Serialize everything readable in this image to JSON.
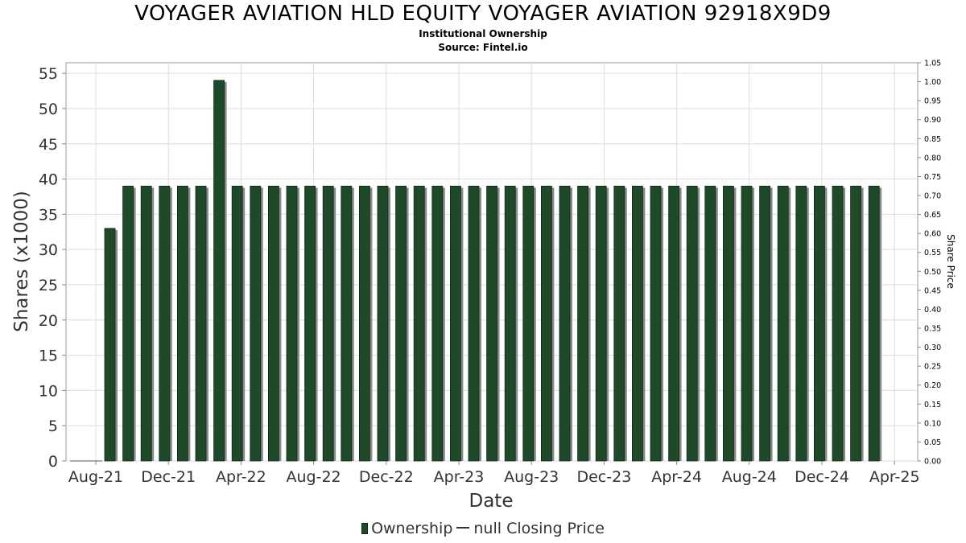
{
  "title": "VOYAGER AVIATION HLD EQUITY VOYAGER AVIATION 92918X9D9",
  "subtitle": "Institutional Ownership",
  "source": "Source: Fintel.io",
  "legend": {
    "ownership": "Ownership",
    "price": "null Closing Price"
  },
  "colors": {
    "bar": "#1f4a2a",
    "bar_edge": "#0d2a15",
    "shadow": "#8a8a8a",
    "grid": "#dddddd"
  },
  "chart_data": {
    "type": "bar",
    "title": "VOYAGER AVIATION HLD EQUITY VOYAGER AVIATION 92918X9D9",
    "xlabel": "Date",
    "ylabel": "Shares (x1000)",
    "y2label": "Share Price",
    "ylim": [
      0,
      56.5
    ],
    "y_ticks": [
      0,
      5,
      10,
      15,
      20,
      25,
      30,
      35,
      40,
      45,
      50,
      55
    ],
    "y2lim": [
      0,
      1.05
    ],
    "y2_ticks": [
      "0.00",
      "0.05",
      "0.10",
      "0.15",
      "0.20",
      "0.25",
      "0.30",
      "0.35",
      "0.40",
      "0.45",
      "0.50",
      "0.55",
      "0.60",
      "0.65",
      "0.70",
      "0.75",
      "0.80",
      "0.85",
      "0.90",
      "0.95",
      "1.00",
      "1.05"
    ],
    "x_tick_labels": [
      "Aug-21",
      "Dec-21",
      "Apr-22",
      "Aug-22",
      "Dec-22",
      "Apr-23",
      "Aug-23",
      "Dec-23",
      "Apr-24",
      "Aug-24",
      "Dec-24",
      "Apr-25"
    ],
    "series": [
      {
        "name": "Ownership",
        "values": [
          33,
          39,
          39,
          39,
          39,
          39,
          54,
          39,
          39,
          39,
          39,
          39,
          39,
          39,
          39,
          39,
          39,
          39,
          39,
          39,
          39,
          39,
          39,
          39,
          39,
          39,
          39,
          39,
          39,
          39,
          39,
          39,
          39,
          39,
          39,
          39,
          39,
          39,
          39,
          39,
          39,
          39,
          39
        ]
      },
      {
        "name": "null Closing Price",
        "values": []
      }
    ]
  }
}
